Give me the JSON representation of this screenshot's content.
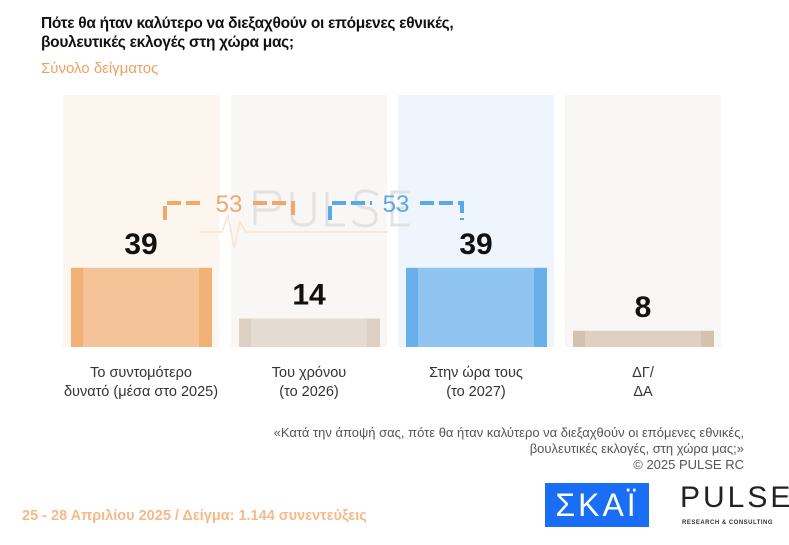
{
  "header": {
    "title": "Πότε θα ήταν καλύτερο να διεξαχθούν οι επόμενες εθνικές, βουλευτικές εκλογές στη χώρα μας;",
    "subtitle": "Σύνολο δείγματος"
  },
  "chart_data": {
    "type": "bar",
    "categories": [
      "Το συντομότερο δυνατό (μέσα στο 2025)",
      "Του χρόνου (το 2026)",
      "Στην ώρα τους (το 2027)",
      "ΔΓ/ΔΑ"
    ],
    "category_lines": [
      [
        "Το συντομότερο",
        "δυνατό (μέσα στο 2025)"
      ],
      [
        "Του χρόνου",
        "(το 2026)"
      ],
      [
        "Στην ώρα τους",
        "(το 2027)"
      ],
      [
        "ΔΓ/",
        "ΔΑ"
      ]
    ],
    "values": [
      39,
      14,
      39,
      8
    ],
    "colors": [
      "#f0a868",
      "#d8cbbd",
      "#5aa8e8",
      "#d0bba6"
    ],
    "backgrounds": [
      "#fdf6ef",
      "#f8f7f6",
      "#eef5fc",
      "#f8f7f6"
    ],
    "groups": [
      {
        "label": "53",
        "members": [
          0,
          1
        ],
        "color": "#f0a868"
      },
      {
        "label": "53",
        "members": [
          1,
          2
        ],
        "color": "#5aa8e8"
      }
    ]
  },
  "note": {
    "line1": "«Κατά την άποψή σας, πότε θα ήταν καλύτερο να διεξαχθούν οι επόμενες εθνικές,",
    "line2": "βουλευτικές εκλογές, στη χώρα μας;»",
    "copyright": "©  2025  PULSE RC"
  },
  "footer": "25 - 28 Απριλίου 2025  /  Δείγμα:  1.144 συνεντεύξεις",
  "logos": {
    "skai": "ΣΚΑΪ",
    "pulse": "PULSE",
    "pulse_sub": "RESEARCH & CONSULTING"
  }
}
